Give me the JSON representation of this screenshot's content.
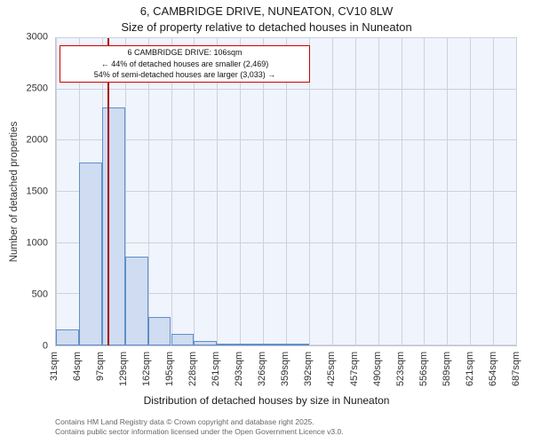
{
  "chart_data": {
    "type": "bar",
    "title": "6, CAMBRIDGE DRIVE, NUNEATON, CV10 8LW",
    "subtitle": "Size of property relative to detached houses in Nuneaton",
    "xlabel": "Distribution of detached houses by size in Nuneaton",
    "ylabel": "Number of detached properties",
    "categories": [
      "31sqm",
      "64sqm",
      "97sqm",
      "129sqm",
      "162sqm",
      "195sqm",
      "228sqm",
      "261sqm",
      "293sqm",
      "326sqm",
      "359sqm",
      "392sqm",
      "425sqm",
      "457sqm",
      "490sqm",
      "523sqm",
      "556sqm",
      "589sqm",
      "621sqm",
      "654sqm",
      "687sqm"
    ],
    "values": [
      160,
      1790,
      2320,
      870,
      280,
      110,
      45,
      20,
      10,
      5,
      8,
      0,
      0,
      0,
      0,
      0,
      0,
      0,
      0,
      0
    ],
    "ylim": [
      0,
      3000
    ],
    "yticks": [
      0,
      500,
      1000,
      1500,
      2000,
      2500,
      3000
    ],
    "xlim_sqm": [
      31,
      687
    ],
    "marker_value_sqm": 106,
    "grid": true,
    "legend": false,
    "bar_fill": "#cfdcf1",
    "bar_border": "#5f8fca",
    "marker_color": "#aa0000",
    "annotation": {
      "line1": "6 CAMBRIDGE DRIVE: 106sqm",
      "line2": "← 44% of detached houses are smaller (2,469)",
      "line3": "54% of semi-detached houses are larger (3,033) →"
    }
  },
  "footer": {
    "line1": "Contains HM Land Registry data © Crown copyright and database right 2025.",
    "line2": "Contains public sector information licensed under the Open Government Licence v3.0."
  }
}
